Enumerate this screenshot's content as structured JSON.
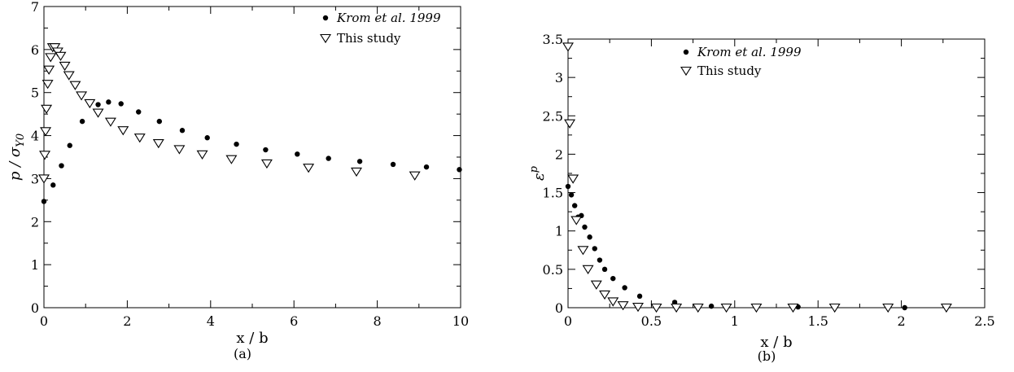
{
  "chart_data": [
    {
      "type": "scatter",
      "panel_label": "(a)",
      "xlabel": "x / b",
      "ylabel": {
        "main": "p / σ",
        "sub": "Y0"
      },
      "xlim": [
        0,
        10
      ],
      "ylim": [
        0,
        7
      ],
      "xticks": [
        "0",
        "2",
        "4",
        "6",
        "8",
        "10"
      ],
      "yticks": [
        "0",
        "1",
        "2",
        "3",
        "4",
        "5",
        "6",
        "7"
      ],
      "grid": false,
      "legend_position": "top-right",
      "series": [
        {
          "name": "Krom et al. 1999",
          "marker": "filled-circle",
          "x": [
            0.0,
            0.22,
            0.42,
            0.62,
            0.92,
            1.3,
            1.55,
            1.85,
            2.27,
            2.77,
            3.32,
            3.92,
            4.62,
            5.32,
            6.08,
            6.83,
            7.58,
            8.38,
            9.18,
            9.97
          ],
          "y": [
            2.47,
            2.85,
            3.3,
            3.77,
            4.33,
            4.72,
            4.78,
            4.74,
            4.55,
            4.33,
            4.12,
            3.95,
            3.8,
            3.67,
            3.57,
            3.47,
            3.4,
            3.33,
            3.27,
            3.21
          ]
        },
        {
          "name": "This study",
          "marker": "open-triangle-down",
          "x": [
            0.0,
            0.02,
            0.04,
            0.06,
            0.09,
            0.12,
            0.16,
            0.21,
            0.26,
            0.33,
            0.4,
            0.5,
            0.6,
            0.75,
            0.9,
            1.1,
            1.3,
            1.6,
            1.9,
            2.3,
            2.75,
            3.25,
            3.8,
            4.5,
            5.35,
            6.35,
            7.5,
            8.9
          ],
          "y": [
            3.0,
            3.55,
            4.1,
            4.62,
            5.2,
            5.53,
            5.82,
            6.05,
            6.05,
            5.95,
            5.85,
            5.62,
            5.4,
            5.17,
            4.93,
            4.75,
            4.53,
            4.32,
            4.12,
            3.95,
            3.82,
            3.68,
            3.56,
            3.45,
            3.35,
            3.25,
            3.16,
            3.07
          ]
        }
      ]
    },
    {
      "type": "scatter",
      "panel_label": "(b)",
      "xlabel": "x / b",
      "ylabel": {
        "main": "ε",
        "sup": "p"
      },
      "xlim": [
        0,
        2.5
      ],
      "ylim": [
        0,
        3.5
      ],
      "xticks": [
        "0",
        "0.5",
        "1",
        "1.5",
        "2",
        "2.5"
      ],
      "yticks": [
        "0",
        "0.5",
        "1",
        "1.5",
        "2",
        "2.5",
        "3",
        "3.5"
      ],
      "grid": false,
      "legend_position": "top-right",
      "series": [
        {
          "name": "Krom et al. 1999",
          "marker": "filled-circle",
          "x": [
            0.0,
            0.02,
            0.04,
            0.06,
            0.08,
            0.1,
            0.13,
            0.16,
            0.19,
            0.22,
            0.27,
            0.34,
            0.43,
            0.64,
            0.86,
            1.38,
            2.02
          ],
          "y": [
            1.58,
            1.47,
            1.33,
            1.18,
            1.2,
            1.05,
            0.92,
            0.77,
            0.62,
            0.5,
            0.38,
            0.26,
            0.15,
            0.07,
            0.02,
            0.01,
            0.0
          ],
          "note": ""
        },
        {
          "name": "This study",
          "marker": "open-triangle-down",
          "x": [
            0.0,
            0.01,
            0.03,
            0.05,
            0.09,
            0.12,
            0.17,
            0.22,
            0.27,
            0.33,
            0.42,
            0.53,
            0.65,
            0.78,
            0.95,
            1.13,
            1.35,
            1.6,
            1.92,
            2.27
          ],
          "y": [
            3.4,
            2.4,
            1.68,
            1.14,
            0.75,
            0.5,
            0.3,
            0.17,
            0.08,
            0.03,
            0.01,
            0.0,
            0.0,
            0.0,
            0.0,
            0.0,
            0.0,
            0.0,
            0.0,
            0.0
          ]
        }
      ]
    }
  ]
}
